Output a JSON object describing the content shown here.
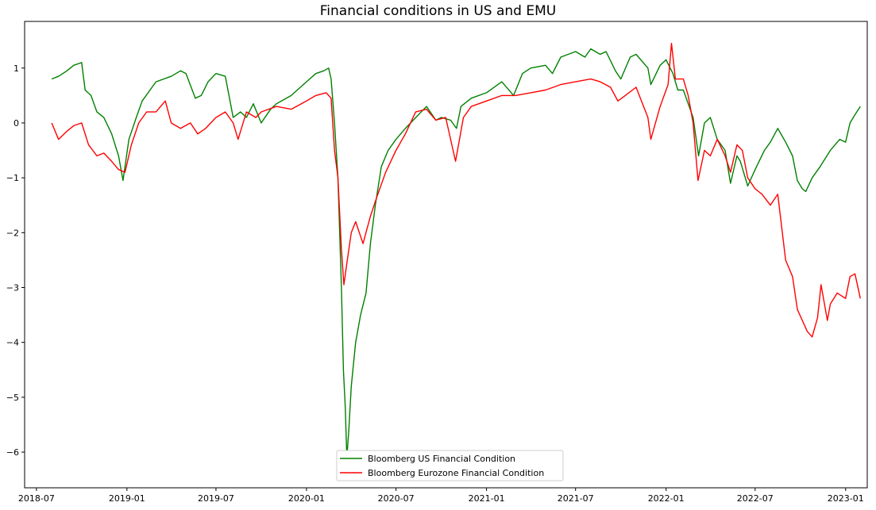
{
  "chart_data": {
    "type": "line",
    "title": "Financial conditions in US and EMU",
    "xlabel": "",
    "ylabel": "",
    "x_ticks": [
      "2018-07",
      "2019-01",
      "2019-07",
      "2020-01",
      "2020-07",
      "2021-01",
      "2021-07",
      "2022-01",
      "2022-07",
      "2023-01"
    ],
    "y_ticks": [
      1,
      0,
      -1,
      -2,
      -3,
      -4,
      -5,
      -6
    ],
    "xlim": [
      "2018-06-07",
      "2023-02-14"
    ],
    "ylim": [
      -6.65,
      1.85
    ],
    "grid": false,
    "legend_position": "bottom-center",
    "series": [
      {
        "name": "Bloomberg US Financial Condition",
        "color": "#008000",
        "points": [
          [
            "2018-08-01",
            0.8
          ],
          [
            "2018-08-15",
            0.85
          ],
          [
            "2018-09-01",
            0.95
          ],
          [
            "2018-09-15",
            1.05
          ],
          [
            "2018-10-01",
            1.1
          ],
          [
            "2018-10-08",
            0.6
          ],
          [
            "2018-10-20",
            0.5
          ],
          [
            "2018-11-01",
            0.2
          ],
          [
            "2018-11-15",
            0.1
          ],
          [
            "2018-12-01",
            -0.2
          ],
          [
            "2018-12-15",
            -0.6
          ],
          [
            "2018-12-24",
            -1.05
          ],
          [
            "2019-01-05",
            -0.3
          ],
          [
            "2019-01-20",
            0.1
          ],
          [
            "2019-02-01",
            0.4
          ],
          [
            "2019-03-01",
            0.75
          ],
          [
            "2019-04-01",
            0.85
          ],
          [
            "2019-04-20",
            0.95
          ],
          [
            "2019-05-01",
            0.9
          ],
          [
            "2019-05-20",
            0.45
          ],
          [
            "2019-06-01",
            0.5
          ],
          [
            "2019-06-15",
            0.75
          ],
          [
            "2019-07-01",
            0.9
          ],
          [
            "2019-07-20",
            0.85
          ],
          [
            "2019-08-05",
            0.1
          ],
          [
            "2019-08-20",
            0.2
          ],
          [
            "2019-09-01",
            0.1
          ],
          [
            "2019-09-15",
            0.35
          ],
          [
            "2019-10-01",
            0.0
          ],
          [
            "2019-10-20",
            0.25
          ],
          [
            "2019-11-01",
            0.35
          ],
          [
            "2019-12-01",
            0.5
          ],
          [
            "2020-01-01",
            0.75
          ],
          [
            "2020-01-20",
            0.9
          ],
          [
            "2020-02-05",
            0.95
          ],
          [
            "2020-02-15",
            1.0
          ],
          [
            "2020-02-20",
            0.8
          ],
          [
            "2020-02-27",
            0.0
          ],
          [
            "2020-03-05",
            -1.0
          ],
          [
            "2020-03-12",
            -3.0
          ],
          [
            "2020-03-16",
            -4.5
          ],
          [
            "2020-03-20",
            -5.2
          ],
          [
            "2020-03-23",
            -6.1
          ],
          [
            "2020-03-27",
            -5.6
          ],
          [
            "2020-04-01",
            -4.8
          ],
          [
            "2020-04-10",
            -4.0
          ],
          [
            "2020-04-20",
            -3.5
          ],
          [
            "2020-05-01",
            -3.1
          ],
          [
            "2020-05-10",
            -2.2
          ],
          [
            "2020-05-20",
            -1.5
          ],
          [
            "2020-06-01",
            -0.8
          ],
          [
            "2020-06-15",
            -0.5
          ],
          [
            "2020-07-01",
            -0.3
          ],
          [
            "2020-07-20",
            -0.1
          ],
          [
            "2020-08-05",
            0.05
          ],
          [
            "2020-09-01",
            0.3
          ],
          [
            "2020-09-20",
            0.05
          ],
          [
            "2020-10-01",
            0.1
          ],
          [
            "2020-10-20",
            0.05
          ],
          [
            "2020-11-01",
            -0.1
          ],
          [
            "2020-11-10",
            0.3
          ],
          [
            "2020-12-01",
            0.45
          ],
          [
            "2021-01-01",
            0.55
          ],
          [
            "2021-02-01",
            0.75
          ],
          [
            "2021-02-25",
            0.5
          ],
          [
            "2021-03-15",
            0.9
          ],
          [
            "2021-04-01",
            1.0
          ],
          [
            "2021-05-01",
            1.05
          ],
          [
            "2021-05-15",
            0.9
          ],
          [
            "2021-06-01",
            1.2
          ],
          [
            "2021-07-01",
            1.3
          ],
          [
            "2021-07-20",
            1.2
          ],
          [
            "2021-08-01",
            1.35
          ],
          [
            "2021-08-20",
            1.25
          ],
          [
            "2021-09-01",
            1.3
          ],
          [
            "2021-09-20",
            0.95
          ],
          [
            "2021-10-01",
            0.8
          ],
          [
            "2021-10-20",
            1.2
          ],
          [
            "2021-11-01",
            1.25
          ],
          [
            "2021-11-25",
            1.0
          ],
          [
            "2021-12-01",
            0.7
          ],
          [
            "2021-12-20",
            1.05
          ],
          [
            "2022-01-01",
            1.15
          ],
          [
            "2022-01-15",
            0.9
          ],
          [
            "2022-01-25",
            0.6
          ],
          [
            "2022-02-05",
            0.6
          ],
          [
            "2022-02-25",
            0.1
          ],
          [
            "2022-03-08",
            -0.6
          ],
          [
            "2022-03-20",
            0.0
          ],
          [
            "2022-04-01",
            0.1
          ],
          [
            "2022-04-15",
            -0.3
          ],
          [
            "2022-05-01",
            -0.5
          ],
          [
            "2022-05-12",
            -1.1
          ],
          [
            "2022-05-25",
            -0.6
          ],
          [
            "2022-06-01",
            -0.7
          ],
          [
            "2022-06-16",
            -1.15
          ],
          [
            "2022-07-01",
            -0.85
          ],
          [
            "2022-07-20",
            -0.5
          ],
          [
            "2022-08-01",
            -0.35
          ],
          [
            "2022-08-16",
            -0.1
          ],
          [
            "2022-09-01",
            -0.35
          ],
          [
            "2022-09-15",
            -0.6
          ],
          [
            "2022-09-25",
            -1.05
          ],
          [
            "2022-10-05",
            -1.2
          ],
          [
            "2022-10-12",
            -1.25
          ],
          [
            "2022-10-25",
            -1.0
          ],
          [
            "2022-11-10",
            -0.8
          ],
          [
            "2022-12-01",
            -0.5
          ],
          [
            "2022-12-20",
            -0.3
          ],
          [
            "2023-01-01",
            -0.35
          ],
          [
            "2023-01-10",
            0.0
          ],
          [
            "2023-01-20",
            0.15
          ],
          [
            "2023-01-31",
            0.3
          ]
        ]
      },
      {
        "name": "Bloomberg Eurozone Financial Condition",
        "color": "#ff0000",
        "points": [
          [
            "2018-08-01",
            0.0
          ],
          [
            "2018-08-15",
            -0.3
          ],
          [
            "2018-09-01",
            -0.15
          ],
          [
            "2018-09-15",
            -0.05
          ],
          [
            "2018-10-01",
            0.0
          ],
          [
            "2018-10-15",
            -0.4
          ],
          [
            "2018-11-01",
            -0.6
          ],
          [
            "2018-11-15",
            -0.55
          ],
          [
            "2018-12-01",
            -0.7
          ],
          [
            "2018-12-15",
            -0.85
          ],
          [
            "2018-12-28",
            -0.9
          ],
          [
            "2019-01-10",
            -0.4
          ],
          [
            "2019-01-25",
            0.0
          ],
          [
            "2019-02-10",
            0.2
          ],
          [
            "2019-03-01",
            0.2
          ],
          [
            "2019-03-20",
            0.4
          ],
          [
            "2019-04-01",
            0.0
          ],
          [
            "2019-04-20",
            -0.1
          ],
          [
            "2019-05-10",
            0.0
          ],
          [
            "2019-05-25",
            -0.2
          ],
          [
            "2019-06-10",
            -0.1
          ],
          [
            "2019-07-01",
            0.1
          ],
          [
            "2019-07-20",
            0.2
          ],
          [
            "2019-08-05",
            0.0
          ],
          [
            "2019-08-15",
            -0.3
          ],
          [
            "2019-09-01",
            0.2
          ],
          [
            "2019-09-20",
            0.1
          ],
          [
            "2019-10-01",
            0.2
          ],
          [
            "2019-11-01",
            0.3
          ],
          [
            "2019-12-01",
            0.25
          ],
          [
            "2020-01-01",
            0.4
          ],
          [
            "2020-01-20",
            0.5
          ],
          [
            "2020-02-10",
            0.55
          ],
          [
            "2020-02-20",
            0.45
          ],
          [
            "2020-02-27",
            -0.5
          ],
          [
            "2020-03-05",
            -1.0
          ],
          [
            "2020-03-12",
            -2.3
          ],
          [
            "2020-03-17",
            -2.95
          ],
          [
            "2020-03-24",
            -2.5
          ],
          [
            "2020-04-01",
            -2.0
          ],
          [
            "2020-04-10",
            -1.8
          ],
          [
            "2020-04-25",
            -2.2
          ],
          [
            "2020-05-10",
            -1.7
          ],
          [
            "2020-05-25",
            -1.3
          ],
          [
            "2020-06-10",
            -0.9
          ],
          [
            "2020-07-01",
            -0.5
          ],
          [
            "2020-07-20",
            -0.2
          ],
          [
            "2020-08-10",
            0.2
          ],
          [
            "2020-09-01",
            0.25
          ],
          [
            "2020-09-20",
            0.05
          ],
          [
            "2020-10-10",
            0.1
          ],
          [
            "2020-10-30",
            -0.7
          ],
          [
            "2020-11-15",
            0.1
          ],
          [
            "2020-12-01",
            0.3
          ],
          [
            "2021-01-01",
            0.4
          ],
          [
            "2021-02-01",
            0.5
          ],
          [
            "2021-03-01",
            0.5
          ],
          [
            "2021-04-01",
            0.55
          ],
          [
            "2021-05-01",
            0.6
          ],
          [
            "2021-06-01",
            0.7
          ],
          [
            "2021-07-01",
            0.75
          ],
          [
            "2021-08-01",
            0.8
          ],
          [
            "2021-08-20",
            0.75
          ],
          [
            "2021-09-10",
            0.65
          ],
          [
            "2021-09-25",
            0.4
          ],
          [
            "2021-10-10",
            0.5
          ],
          [
            "2021-11-01",
            0.65
          ],
          [
            "2021-11-25",
            0.1
          ],
          [
            "2021-12-01",
            -0.3
          ],
          [
            "2021-12-20",
            0.3
          ],
          [
            "2022-01-05",
            0.7
          ],
          [
            "2022-01-12",
            1.45
          ],
          [
            "2022-01-20",
            0.8
          ],
          [
            "2022-02-05",
            0.8
          ],
          [
            "2022-02-15",
            0.5
          ],
          [
            "2022-02-25",
            0.0
          ],
          [
            "2022-03-07",
            -1.05
          ],
          [
            "2022-03-20",
            -0.5
          ],
          [
            "2022-04-01",
            -0.6
          ],
          [
            "2022-04-15",
            -0.3
          ],
          [
            "2022-05-01",
            -0.6
          ],
          [
            "2022-05-12",
            -0.9
          ],
          [
            "2022-05-25",
            -0.4
          ],
          [
            "2022-06-05",
            -0.5
          ],
          [
            "2022-06-16",
            -1.0
          ],
          [
            "2022-07-01",
            -1.2
          ],
          [
            "2022-07-15",
            -1.3
          ],
          [
            "2022-08-01",
            -1.5
          ],
          [
            "2022-08-16",
            -1.3
          ],
          [
            "2022-09-01",
            -2.5
          ],
          [
            "2022-09-15",
            -2.8
          ],
          [
            "2022-09-25",
            -3.4
          ],
          [
            "2022-10-05",
            -3.6
          ],
          [
            "2022-10-15",
            -3.8
          ],
          [
            "2022-10-25",
            -3.9
          ],
          [
            "2022-11-05",
            -3.55
          ],
          [
            "2022-11-12",
            -2.95
          ],
          [
            "2022-11-25",
            -3.6
          ],
          [
            "2022-12-01",
            -3.3
          ],
          [
            "2022-12-15",
            -3.1
          ],
          [
            "2023-01-01",
            -3.2
          ],
          [
            "2023-01-10",
            -2.8
          ],
          [
            "2023-01-20",
            -2.75
          ],
          [
            "2023-01-31",
            -3.2
          ]
        ]
      }
    ]
  }
}
